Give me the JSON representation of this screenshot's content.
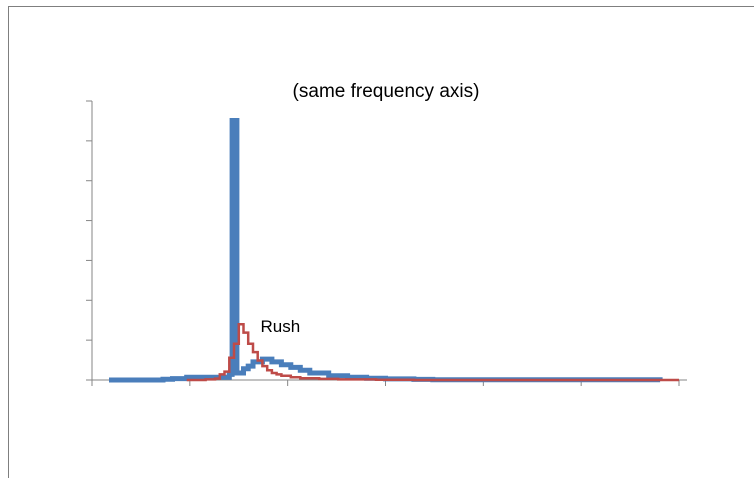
{
  "chart_data": {
    "type": "line",
    "title": "(same frequency axis)",
    "xlabel": "",
    "ylabel": "",
    "x_tick_count": 7,
    "y_tick_count": 8,
    "xlim": [
      0,
      6.2
    ],
    "ylim": [
      0,
      1
    ],
    "grid": false,
    "legend": "none",
    "annotations": [
      {
        "text": "Rush",
        "x": 1.78,
        "y": 0.172
      }
    ],
    "series": [
      {
        "color": "#4a7ebb",
        "stroke": "thick",
        "step": true,
        "x": [
          0.18,
          0.75,
          0.85,
          1.0,
          1.45,
          1.48,
          1.49,
          1.52,
          1.53,
          1.6,
          1.65,
          1.7,
          1.8,
          1.9,
          2.0,
          2.1,
          2.2,
          2.3,
          2.5,
          2.7,
          2.9,
          3.1,
          3.4,
          3.6,
          6.0
        ],
        "y": [
          0.0,
          0.003,
          0.005,
          0.01,
          0.02,
          0.93,
          0.93,
          0.93,
          0.025,
          0.04,
          0.05,
          0.065,
          0.075,
          0.065,
          0.055,
          0.045,
          0.035,
          0.025,
          0.015,
          0.01,
          0.006,
          0.004,
          0.002,
          0.001,
          0.0
        ]
      },
      {
        "color": "#be4b48",
        "stroke": "thin",
        "step": true,
        "x": [
          1.0,
          1.2,
          1.3,
          1.35,
          1.4,
          1.45,
          1.5,
          1.55,
          1.6,
          1.65,
          1.7,
          1.75,
          1.8,
          1.85,
          1.9,
          1.95,
          2.0,
          2.1,
          2.2,
          2.4,
          2.6,
          3.0,
          3.4,
          6.2
        ],
        "y": [
          0.0,
          0.002,
          0.005,
          0.02,
          0.03,
          0.08,
          0.13,
          0.2,
          0.17,
          0.13,
          0.1,
          0.07,
          0.05,
          0.035,
          0.025,
          0.02,
          0.015,
          0.01,
          0.006,
          0.004,
          0.002,
          0.001,
          0.0,
          0.0
        ]
      }
    ]
  }
}
